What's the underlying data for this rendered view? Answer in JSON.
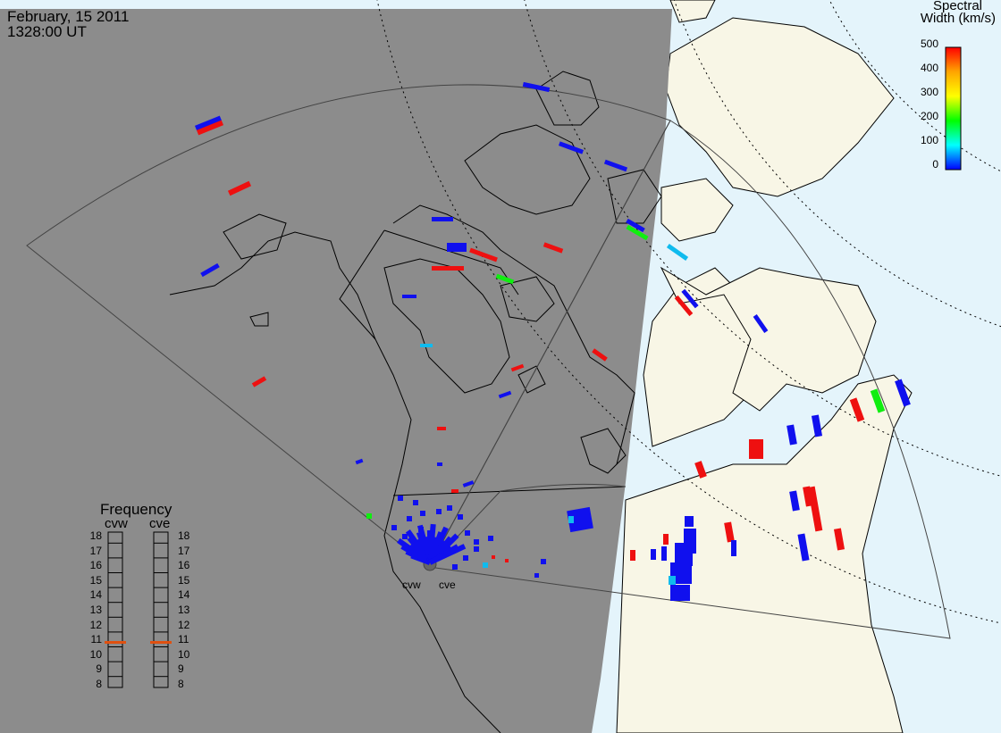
{
  "header": {
    "date": "February, 15 2011",
    "time": "1328:00 UT"
  },
  "legend": {
    "title_line1": "Spectral",
    "title_line2": "Width (km/s)",
    "ticks": [
      "500",
      "400",
      "300",
      "200",
      "100",
      "0"
    ],
    "colors": [
      "#ff0000",
      "#ffa500",
      "#ffff00",
      "#00ff00",
      "#00ffff",
      "#0000ff"
    ]
  },
  "frequency": {
    "title": "Frequency",
    "radars": [
      "cvw",
      "cve"
    ],
    "scale": [
      "18",
      "17",
      "16",
      "15",
      "14",
      "13",
      "12",
      "11",
      "10",
      "9",
      "8"
    ],
    "cvw_value": 10.8,
    "cve_value": 10.8,
    "marker_color": "#e05010"
  },
  "stations": {
    "west": "cvw",
    "east": "cve"
  },
  "colors": {
    "night": "#8c8c8c",
    "land": "#f8f6e6",
    "ocean": "#e4f4fb",
    "scatter_blue": "#1010ee",
    "scatter_red": "#ee1010",
    "scatter_green": "#10ee10",
    "scatter_cyan": "#10bbee"
  }
}
